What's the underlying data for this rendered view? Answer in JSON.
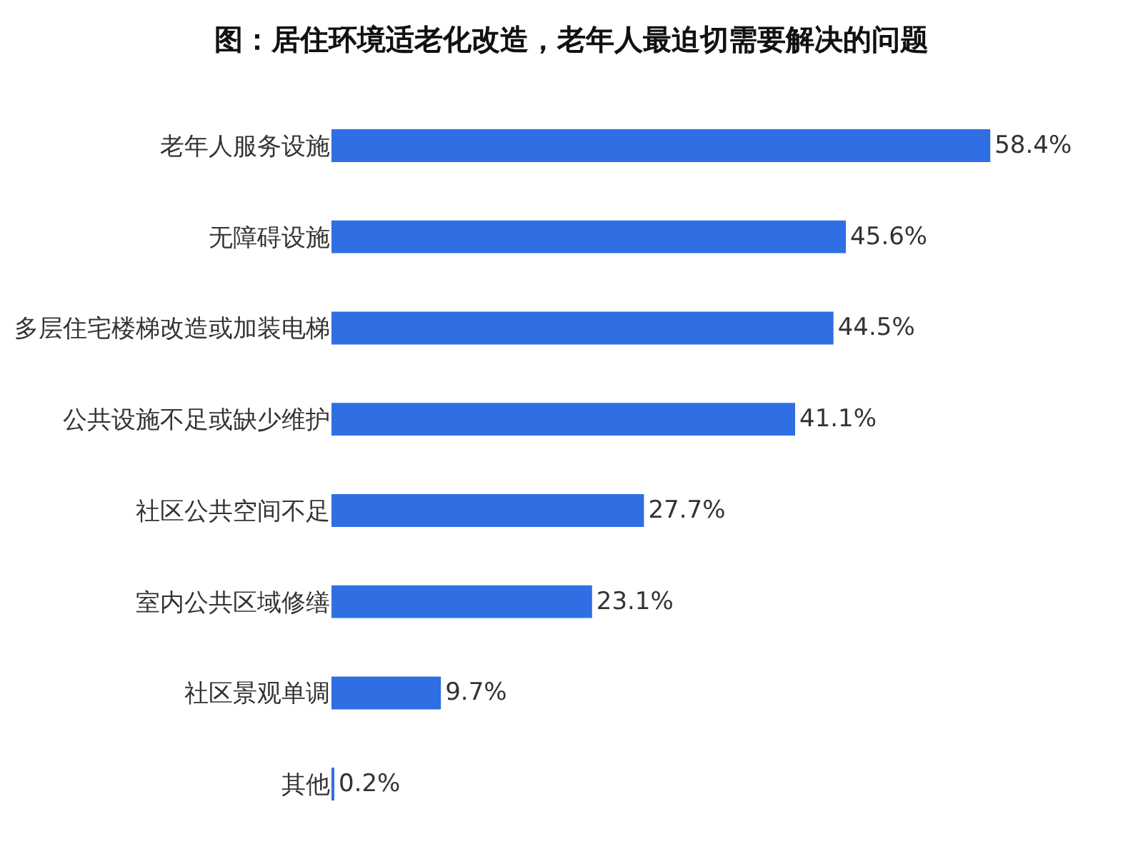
{
  "chart_data": {
    "type": "bar",
    "orientation": "horizontal",
    "title": "图：居住环境适老化改造，老年人最迫切需要解决的问题",
    "categories": [
      "老年人服务设施",
      "无障碍设施",
      "多层住宅楼梯改造或加装电梯",
      "公共设施不足或缺少维护",
      "社区公共空间不足",
      "室内公共区域修缮",
      "社区景观单调",
      "其他"
    ],
    "values": [
      58.4,
      45.6,
      44.5,
      41.1,
      27.7,
      23.1,
      9.7,
      0.2
    ],
    "value_labels": [
      "58.4%",
      "45.6%",
      "44.5%",
      "41.1%",
      "27.7%",
      "23.1%",
      "9.7%",
      "0.2%"
    ],
    "color": "#2f6fe3"
  }
}
